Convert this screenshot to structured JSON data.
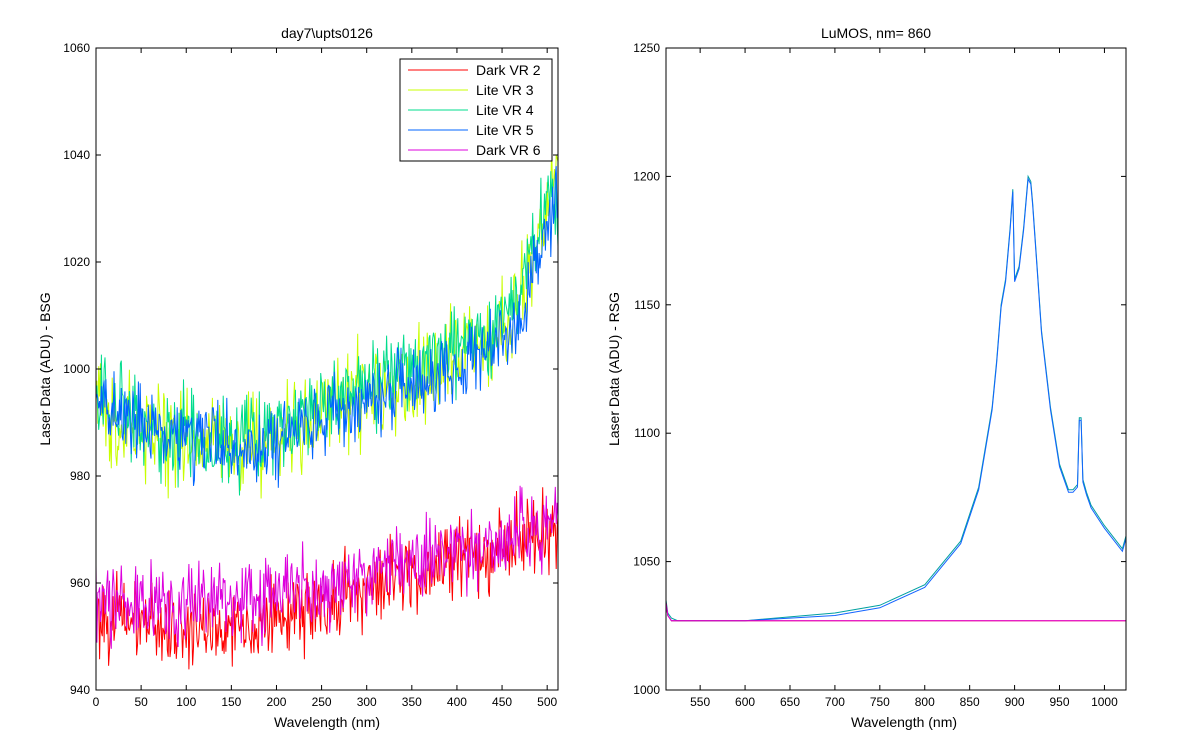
{
  "chart_data": [
    {
      "type": "line",
      "title": "day7\\upts0126",
      "xlabel": "Wavelength (nm)",
      "ylabel": "Laser Data (ADU) - BSG",
      "xlim": [
        0,
        512
      ],
      "ylim": [
        940,
        1060
      ],
      "xticks": [
        0,
        50,
        100,
        150,
        200,
        250,
        300,
        350,
        400,
        450,
        500
      ],
      "yticks": [
        940,
        960,
        980,
        1000,
        1020,
        1040,
        1060
      ],
      "grid": false,
      "legend_position": "top-right",
      "series": [
        {
          "name": "Dark VR 2",
          "color": "#ff0000",
          "x": [
            0,
            50,
            100,
            150,
            200,
            250,
            300,
            350,
            400,
            450,
            500,
            512
          ],
          "y": [
            954,
            953,
            951,
            952,
            953,
            956,
            959,
            962,
            965,
            967,
            970,
            971
          ],
          "noise": 4.5
        },
        {
          "name": "Lite VR 3",
          "color": "#c8ff00",
          "x": [
            0,
            50,
            100,
            150,
            200,
            250,
            300,
            350,
            400,
            450,
            470,
            490,
            500,
            512
          ],
          "y": [
            993,
            988,
            986,
            986,
            987,
            992,
            996,
            999,
            1002,
            1008,
            1013,
            1025,
            1032,
            1035
          ],
          "noise": 5.5
        },
        {
          "name": "Lite VR 4",
          "color": "#00dc8c",
          "x": [
            0,
            50,
            100,
            150,
            200,
            250,
            300,
            350,
            400,
            450,
            470,
            490,
            500,
            512
          ],
          "y": [
            994,
            989,
            987,
            986,
            988,
            993,
            997,
            1000,
            1003,
            1009,
            1014,
            1026,
            1032,
            1034
          ],
          "noise": 5.0
        },
        {
          "name": "Lite VR 5",
          "color": "#0064ff",
          "x": [
            0,
            50,
            100,
            150,
            200,
            250,
            300,
            350,
            400,
            450,
            470,
            490,
            500,
            512
          ],
          "y": [
            994,
            990,
            987,
            986,
            986,
            990,
            994,
            997,
            1000,
            1005,
            1010,
            1020,
            1028,
            1030
          ],
          "noise": 4.5
        },
        {
          "name": "Dark VR 6",
          "color": "#dd00dd",
          "x": [
            0,
            50,
            100,
            150,
            200,
            250,
            300,
            350,
            400,
            450,
            500,
            512
          ],
          "y": [
            956,
            956,
            956,
            957,
            958,
            959,
            962,
            964,
            966,
            968,
            970,
            972
          ],
          "noise": 4.5
        }
      ]
    },
    {
      "type": "line",
      "title": "LuMOS, nm= 860",
      "xlabel": "Wavelength (nm)",
      "ylabel": "Laser Data (ADU) - RSG",
      "xlim": [
        512,
        1024
      ],
      "ylim": [
        1000,
        1250
      ],
      "xticks": [
        550,
        600,
        650,
        700,
        750,
        800,
        850,
        900,
        950,
        1000
      ],
      "yticks": [
        1000,
        1050,
        1100,
        1150,
        1200,
        1250
      ],
      "grid": false,
      "series": [
        {
          "color": "#00a0a0",
          "x": [
            512,
            514,
            518,
            525,
            600,
            700,
            750,
            800,
            840,
            860,
            875,
            880,
            885,
            890,
            895,
            898,
            900,
            905,
            910,
            915,
            918,
            920,
            925,
            930,
            940,
            950,
            960,
            965,
            970,
            972,
            974,
            976,
            980,
            985,
            1000,
            1020,
            1024
          ],
          "y": [
            1035,
            1030,
            1028,
            1027,
            1027,
            1030,
            1033,
            1041,
            1058,
            1079,
            1110,
            1128,
            1150,
            1160,
            1180,
            1195,
            1160,
            1165,
            1180,
            1200,
            1198,
            1190,
            1165,
            1140,
            1110,
            1088,
            1078,
            1078,
            1080,
            1106,
            1106,
            1082,
            1077,
            1072,
            1064,
            1055,
            1060
          ]
        },
        {
          "color": "#1464ff",
          "x": [
            512,
            514,
            518,
            525,
            600,
            700,
            750,
            800,
            840,
            860,
            875,
            880,
            885,
            890,
            895,
            898,
            900,
            905,
            910,
            915,
            918,
            920,
            925,
            930,
            940,
            950,
            960,
            965,
            970,
            972,
            974,
            976,
            980,
            985,
            1000,
            1020,
            1024
          ],
          "y": [
            1034,
            1029,
            1027,
            1027,
            1027,
            1029,
            1032,
            1040,
            1057,
            1078,
            1109,
            1127,
            1149,
            1159,
            1179,
            1194,
            1159,
            1164,
            1179,
            1199,
            1197,
            1189,
            1164,
            1139,
            1109,
            1087,
            1077,
            1077,
            1079,
            1105,
            1105,
            1081,
            1076,
            1071,
            1063,
            1054,
            1059
          ]
        },
        {
          "color": "#ff0000",
          "x": [
            512,
            514,
            518,
            525,
            1024
          ],
          "y": [
            1034,
            1029,
            1027,
            1027,
            1027
          ]
        },
        {
          "color": "#dd00dd",
          "x": [
            512,
            514,
            518,
            525,
            1024
          ],
          "y": [
            1034,
            1029,
            1027,
            1027,
            1027
          ]
        }
      ]
    }
  ]
}
